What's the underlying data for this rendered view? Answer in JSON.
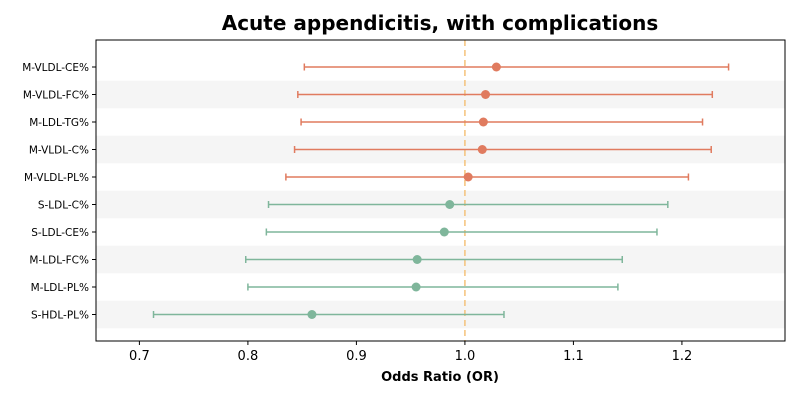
{
  "chart_data": {
    "type": "forest",
    "title": "Acute appendicitis, with complications",
    "xlabel": "Odds Ratio (OR)",
    "ylabel": "",
    "xlim": [
      0.66,
      1.295
    ],
    "x_ticks": [
      0.7,
      0.8,
      0.9,
      1.0,
      1.1,
      1.2
    ],
    "x_tick_labels": [
      "0.7",
      "0.8",
      "0.9",
      "1.0",
      "1.1",
      "1.2"
    ],
    "reference_line": 1.0,
    "reference_line_color": "#f4c27a",
    "colors": {
      "positive": "#e07b5f",
      "negative": "#7fb69b",
      "band": "#f5f5f5"
    },
    "rows": [
      {
        "label": "M-VLDL-CE%",
        "or": 1.029,
        "lower": 0.852,
        "upper": 1.243,
        "color": "#e07b5f"
      },
      {
        "label": "M-VLDL-FC%",
        "or": 1.019,
        "lower": 0.846,
        "upper": 1.228,
        "color": "#e07b5f"
      },
      {
        "label": "M-LDL-TG%",
        "or": 1.017,
        "lower": 0.849,
        "upper": 1.219,
        "color": "#e07b5f"
      },
      {
        "label": "M-VLDL-C%",
        "or": 1.016,
        "lower": 0.843,
        "upper": 1.227,
        "color": "#e07b5f"
      },
      {
        "label": "M-VLDL-PL%",
        "or": 1.003,
        "lower": 0.835,
        "upper": 1.206,
        "color": "#e07b5f"
      },
      {
        "label": "S-LDL-C%",
        "or": 0.986,
        "lower": 0.819,
        "upper": 1.187,
        "color": "#7fb69b"
      },
      {
        "label": "S-LDL-CE%",
        "or": 0.981,
        "lower": 0.817,
        "upper": 1.177,
        "color": "#7fb69b"
      },
      {
        "label": "M-LDL-FC%",
        "or": 0.956,
        "lower": 0.798,
        "upper": 1.145,
        "color": "#7fb69b"
      },
      {
        "label": "M-LDL-PL%",
        "or": 0.955,
        "lower": 0.8,
        "upper": 1.141,
        "color": "#7fb69b"
      },
      {
        "label": "S-HDL-PL%",
        "or": 0.859,
        "lower": 0.713,
        "upper": 1.036,
        "color": "#7fb69b"
      }
    ]
  }
}
